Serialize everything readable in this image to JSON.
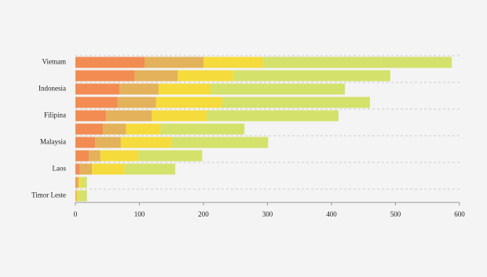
{
  "chart_data": {
    "type": "stacked-bar-horizontal",
    "categories": [
      "Vietnam",
      null,
      "Indonesia",
      null,
      "Filipina",
      null,
      "Malaysia",
      null,
      "Laos",
      null,
      "Timor Leste"
    ],
    "series": [
      {
        "color": "#f28c52",
        "values": [
          108,
          92,
          69,
          66,
          48,
          43,
          31,
          21,
          7,
          2,
          1
        ]
      },
      {
        "color": "#e3b25a",
        "values": [
          92,
          68,
          61,
          60,
          71,
          36,
          40,
          18,
          19,
          3,
          1
        ]
      },
      {
        "color": "#f5db3c",
        "values": [
          93,
          87,
          81,
          103,
          86,
          54,
          79,
          60,
          51,
          4,
          3
        ]
      },
      {
        "color": "#d4e16b",
        "values": [
          295,
          245,
          210,
          231,
          206,
          131,
          151,
          99,
          79,
          9,
          13
        ]
      }
    ],
    "xlim": [
      0,
      600
    ],
    "xticks": [
      0,
      100,
      200,
      300,
      400,
      500,
      600
    ]
  }
}
